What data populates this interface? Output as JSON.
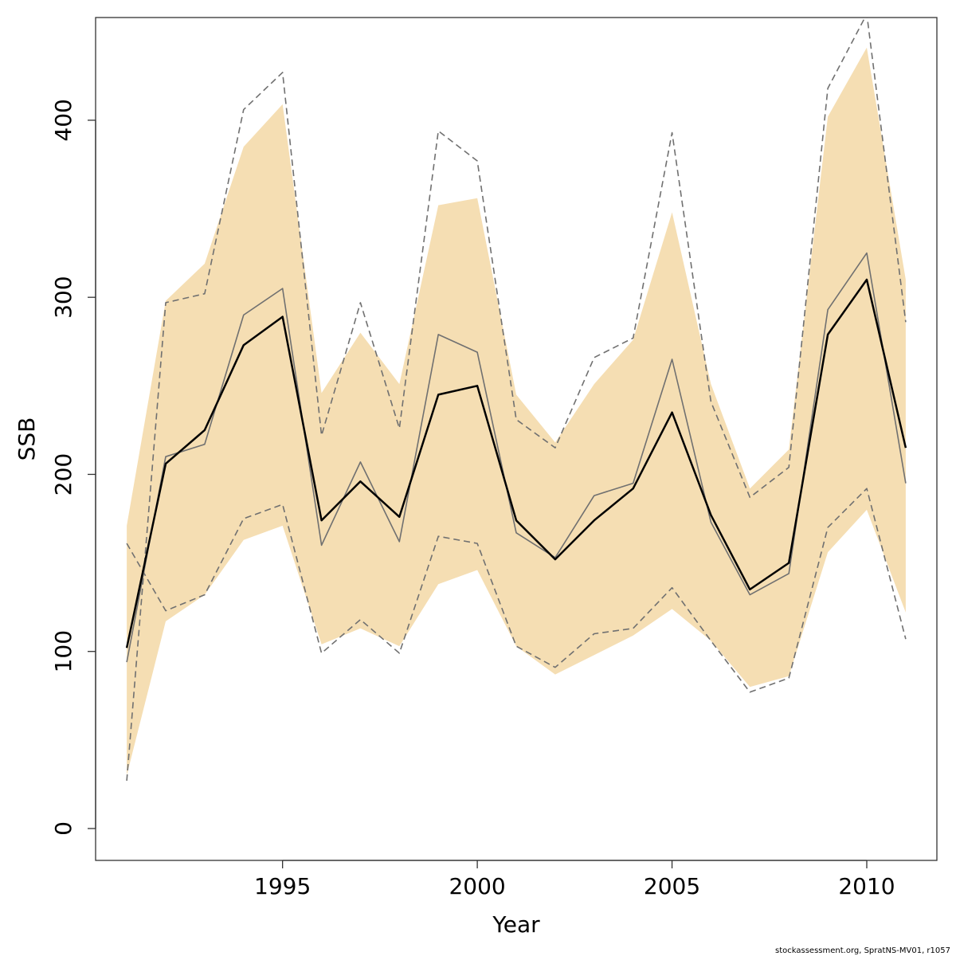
{
  "chart_data": {
    "type": "line",
    "xlabel": "Year",
    "ylabel": "SSB",
    "xlim": [
      1990.2,
      2011.8
    ],
    "ylim": [
      -18,
      458
    ],
    "x_ticks": [
      1995,
      2000,
      2005,
      2010
    ],
    "y_ticks": [
      0,
      100,
      200,
      300,
      400
    ],
    "grid": false,
    "x": [
      1991,
      1992,
      1993,
      1994,
      1995,
      1996,
      1997,
      1998,
      1999,
      2000,
      2001,
      2002,
      2003,
      2004,
      2005,
      2006,
      2007,
      2008,
      2009,
      2010,
      2011
    ],
    "band": {
      "color": "#f5deb3",
      "upper": [
        171,
        298,
        319,
        385,
        409,
        246,
        280,
        251,
        352,
        356,
        245,
        218,
        251,
        276,
        348,
        251,
        192,
        214,
        402,
        441,
        310
      ],
      "lower": [
        30,
        117,
        132,
        163,
        171,
        104,
        113,
        103,
        138,
        146,
        103,
        87,
        98,
        109,
        124,
        106,
        80,
        86,
        156,
        180,
        122
      ]
    },
    "series": [
      {
        "color": "#000000",
        "style": "solid",
        "width": 2.5,
        "values": [
          102,
          206,
          225,
          273,
          289,
          174,
          196,
          176,
          245,
          250,
          174,
          152,
          174,
          192,
          235,
          177,
          135,
          150,
          279,
          310,
          215
        ]
      },
      {
        "color": "#707070",
        "style": "solid",
        "width": 1.6,
        "values": [
          94,
          210,
          217,
          290,
          305,
          160,
          207,
          162,
          279,
          269,
          167,
          153,
          188,
          195,
          265,
          173,
          132,
          144,
          293,
          325,
          195
        ]
      },
      {
        "color": "#707070",
        "style": "dashed",
        "width": 1.6,
        "values": [
          27,
          297,
          302,
          406,
          427,
          222,
          297,
          226,
          394,
          377,
          231,
          215,
          266,
          277,
          393,
          241,
          187,
          204,
          418,
          460,
          286
        ]
      },
      {
        "color": "#707070",
        "style": "dashed",
        "width": 1.6,
        "values": [
          161,
          123,
          132,
          175,
          183,
          99,
          118,
          99,
          165,
          161,
          103,
          91,
          110,
          113,
          136,
          106,
          77,
          85,
          170,
          192,
          107
        ]
      }
    ]
  },
  "footer": "stockassessment.org, SpratNS-MV01, r1057"
}
